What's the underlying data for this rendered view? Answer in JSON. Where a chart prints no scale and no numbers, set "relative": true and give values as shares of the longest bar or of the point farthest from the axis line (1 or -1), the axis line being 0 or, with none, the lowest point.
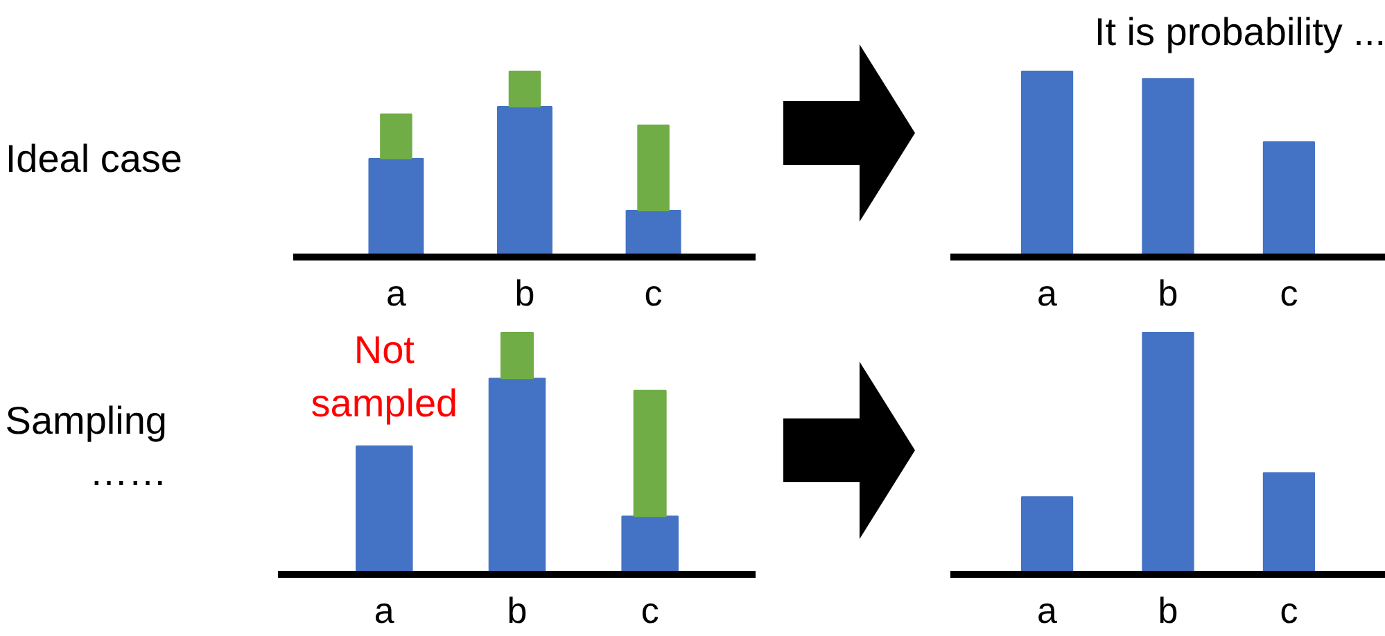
{
  "chart_data": [
    {
      "type": "bar",
      "relative": true,
      "stacked": true,
      "ylabel": "Ideal case",
      "categories": [
        "a",
        "b",
        "c"
      ],
      "series": [
        {
          "color": "#4472c4",
          "values": [
            0.53,
            0.81,
            0.25
          ]
        },
        {
          "color": "#70ad47",
          "values": [
            0.24,
            0.19,
            0.46
          ]
        }
      ]
    },
    {
      "type": "bar",
      "relative": true,
      "title": "It is probability ...",
      "categories": [
        "a",
        "b",
        "c"
      ],
      "series": [
        {
          "color": "#4472c4",
          "values": [
            1,
            0.96,
            0.62
          ]
        }
      ]
    },
    {
      "type": "bar",
      "relative": true,
      "stacked": true,
      "ylabel": "Sampling\n……",
      "annotations": [
        "Not sampled"
      ],
      "categories": [
        "a",
        "b",
        "c"
      ],
      "series": [
        {
          "color": "#4472c4",
          "values": [
            0.53,
            0.81,
            0.24
          ]
        },
        {
          "color": "#70ad47",
          "values": [
            null,
            0.19,
            0.52
          ]
        }
      ]
    },
    {
      "type": "bar",
      "relative": true,
      "categories": [
        "a",
        "b",
        "c"
      ],
      "series": [
        {
          "color": "#4472c4",
          "values": [
            0.32,
            1,
            0.42
          ]
        }
      ]
    }
  ]
}
